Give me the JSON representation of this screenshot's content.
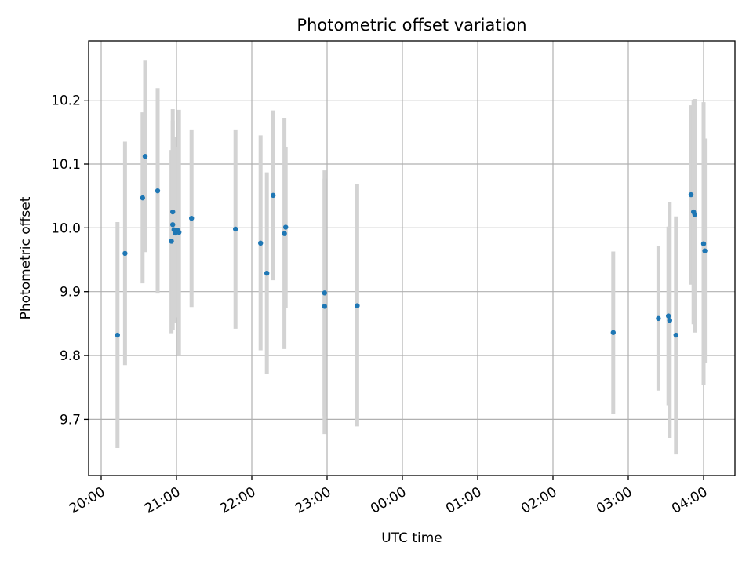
{
  "chart_data": {
    "type": "scatter",
    "title": "Photometric offset variation",
    "xlabel": "UTC time",
    "ylabel": "Photometric offset",
    "x_unit": "UTC time (HH:MM), 20:00 on day 1 through 04:00 on day 2",
    "x_ticks": [
      "20:00",
      "21:00",
      "22:00",
      "23:00",
      "00:00",
      "01:00",
      "02:00",
      "03:00",
      "04:00"
    ],
    "y_ticks": [
      "9.7",
      "9.8",
      "9.9",
      "10.0",
      "10.1",
      "10.2"
    ],
    "y_tick_values": [
      9.7,
      9.8,
      9.9,
      10.0,
      10.1,
      10.2
    ],
    "xlim": [
      "19:50",
      "04:25"
    ],
    "ylim": [
      9.612,
      10.293
    ],
    "grid": true,
    "point_color": "#1f77b4",
    "errorbar_color": "#d3d3d3",
    "points": [
      {
        "x": "20:13",
        "y": 9.832,
        "low": 9.655,
        "high": 10.009
      },
      {
        "x": "20:19",
        "y": 9.96,
        "low": 9.785,
        "high": 10.135
      },
      {
        "x": "20:33",
        "y": 10.047,
        "low": 9.913,
        "high": 10.181
      },
      {
        "x": "20:35",
        "y": 10.112,
        "low": 9.962,
        "high": 10.262
      },
      {
        "x": "20:45",
        "y": 10.058,
        "low": 9.897,
        "high": 10.219
      },
      {
        "x": "20:56",
        "y": 9.979,
        "low": 9.835,
        "high": 10.122
      },
      {
        "x": "20:57",
        "y": 10.005,
        "low": 9.84,
        "high": 10.168
      },
      {
        "x": "20:57",
        "y": 10.025,
        "low": 9.863,
        "high": 10.186
      },
      {
        "x": "20:58",
        "y": 9.997,
        "low": 9.851,
        "high": 10.143
      },
      {
        "x": "20:59",
        "y": 9.992,
        "low": 9.86,
        "high": 10.124
      },
      {
        "x": "21:00",
        "y": 9.994,
        "low": 9.86,
        "high": 10.127
      },
      {
        "x": "21:01",
        "y": 9.996,
        "low": 9.867,
        "high": 10.125
      },
      {
        "x": "21:02",
        "y": 9.993,
        "low": 9.801,
        "high": 10.185
      },
      {
        "x": "21:12",
        "y": 10.015,
        "low": 9.876,
        "high": 10.153
      },
      {
        "x": "21:47",
        "y": 9.998,
        "low": 9.842,
        "high": 10.153
      },
      {
        "x": "22:07",
        "y": 9.976,
        "low": 9.808,
        "high": 10.145
      },
      {
        "x": "22:12",
        "y": 9.929,
        "low": 9.771,
        "high": 10.087
      },
      {
        "x": "22:17",
        "y": 10.051,
        "low": 9.918,
        "high": 10.184
      },
      {
        "x": "22:26",
        "y": 9.991,
        "low": 9.81,
        "high": 10.172
      },
      {
        "x": "22:27",
        "y": 10.001,
        "low": 9.875,
        "high": 10.127
      },
      {
        "x": "22:58",
        "y": 9.898,
        "low": 9.705,
        "high": 10.09
      },
      {
        "x": "22:58",
        "y": 9.877,
        "low": 9.677,
        "high": 10.077
      },
      {
        "x": "23:24",
        "y": 9.878,
        "low": 9.689,
        "high": 10.068
      },
      {
        "x": "02:48",
        "y": 9.836,
        "low": 9.709,
        "high": 9.963
      },
      {
        "x": "03:24",
        "y": 9.858,
        "low": 9.745,
        "high": 9.971
      },
      {
        "x": "03:32",
        "y": 9.862,
        "low": 9.722,
        "high": 10.002
      },
      {
        "x": "03:33",
        "y": 9.855,
        "low": 9.671,
        "high": 10.04
      },
      {
        "x": "03:38",
        "y": 9.832,
        "low": 9.645,
        "high": 10.018
      },
      {
        "x": "03:50",
        "y": 10.052,
        "low": 9.911,
        "high": 10.192
      },
      {
        "x": "03:52",
        "y": 10.025,
        "low": 9.849,
        "high": 10.201
      },
      {
        "x": "03:53",
        "y": 10.021,
        "low": 9.836,
        "high": 10.202
      },
      {
        "x": "04:00",
        "y": 9.975,
        "low": 9.754,
        "high": 10.197
      },
      {
        "x": "04:01",
        "y": 9.964,
        "low": 9.789,
        "high": 10.14
      }
    ]
  }
}
